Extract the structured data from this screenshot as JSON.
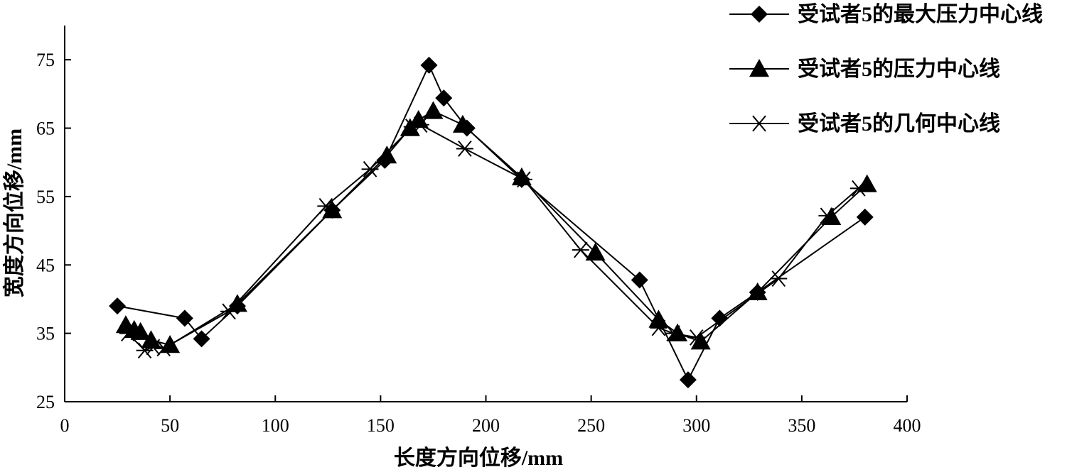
{
  "chart_data": {
    "type": "line",
    "xlabel": "长度方向位移/mm",
    "ylabel": "宽度方向位移/mm",
    "xlim": [
      0,
      400
    ],
    "ylim": [
      25,
      80
    ],
    "xticks": [
      0,
      50,
      100,
      150,
      200,
      250,
      300,
      350,
      400
    ],
    "yticks": [
      25,
      35,
      45,
      55,
      65,
      75
    ],
    "grid": false,
    "legend_position": "top-right",
    "series": [
      {
        "name": "受试者5的最大压力中心线",
        "marker": "diamond",
        "color": "#000000",
        "points": [
          [
            25,
            39
          ],
          [
            57,
            37.2
          ],
          [
            65,
            34.2
          ],
          [
            82,
            39
          ],
          [
            127,
            53
          ],
          [
            152,
            60.3
          ],
          [
            173,
            74.2
          ],
          [
            180,
            69.4
          ],
          [
            191,
            65
          ],
          [
            217,
            57.5
          ],
          [
            273,
            42.8
          ],
          [
            296,
            28.2
          ],
          [
            311,
            37.2
          ],
          [
            329,
            41
          ],
          [
            380,
            52
          ]
        ]
      },
      {
        "name": "受试者5的压力中心线",
        "marker": "triangle",
        "color": "#000000",
        "points": [
          [
            29,
            36.2
          ],
          [
            33,
            35.5
          ],
          [
            36,
            35.2
          ],
          [
            41,
            34
          ],
          [
            50,
            33.3
          ],
          [
            82,
            39.3
          ],
          [
            127,
            53
          ],
          [
            153,
            61
          ],
          [
            164,
            65
          ],
          [
            168,
            66.2
          ],
          [
            175,
            67.5
          ],
          [
            189,
            65.5
          ],
          [
            217,
            57.8
          ],
          [
            252,
            46.8
          ],
          [
            282,
            37
          ],
          [
            291,
            35
          ],
          [
            302,
            33.8
          ],
          [
            329,
            41
          ],
          [
            364,
            52
          ],
          [
            381,
            56.8
          ]
        ]
      },
      {
        "name": "受试者5的几何中心线",
        "marker": "asterisk",
        "color": "#000000",
        "points": [
          [
            30,
            35
          ],
          [
            38,
            32.5
          ],
          [
            42,
            33
          ],
          [
            47,
            32.8
          ],
          [
            78,
            38.2
          ],
          [
            124,
            53.6
          ],
          [
            145,
            59
          ],
          [
            165,
            65.2
          ],
          [
            169,
            65.5
          ],
          [
            190,
            62
          ],
          [
            218,
            57.5
          ],
          [
            245,
            47.2
          ],
          [
            282,
            35.8
          ],
          [
            289,
            35
          ],
          [
            300,
            34.4
          ],
          [
            339,
            43
          ],
          [
            362,
            52.2
          ],
          [
            377,
            56.2
          ]
        ]
      }
    ]
  }
}
